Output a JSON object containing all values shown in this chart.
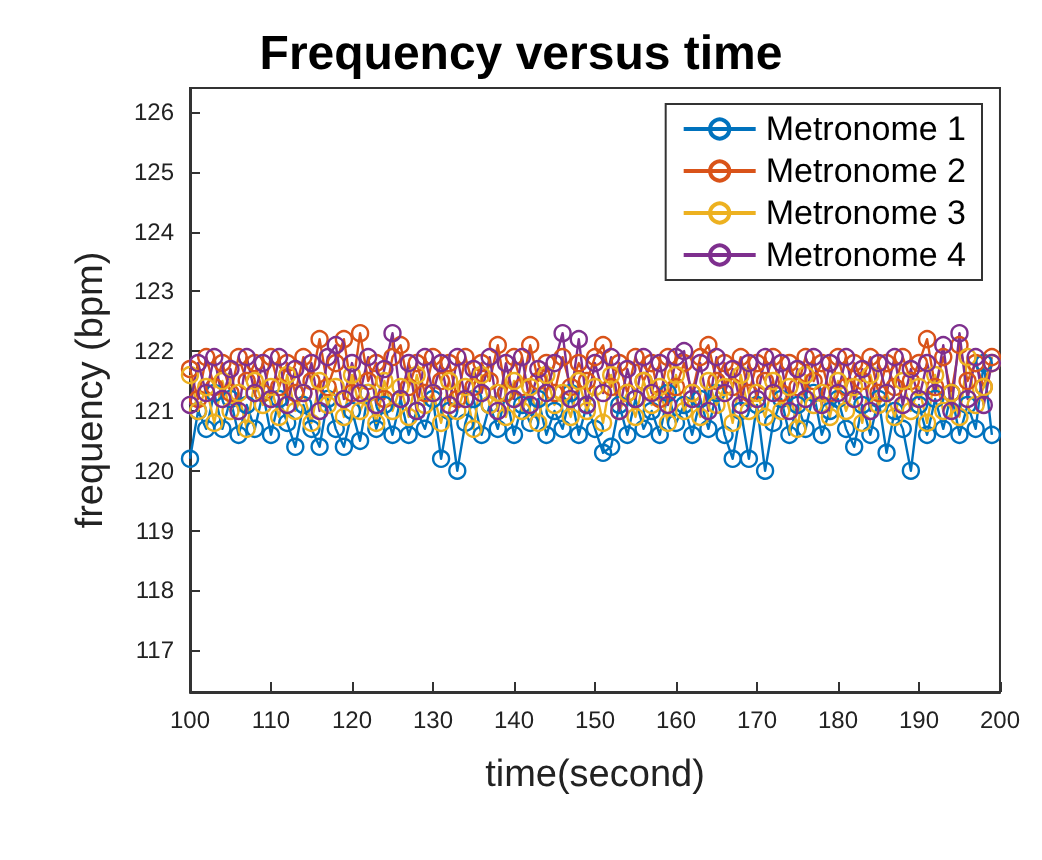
{
  "chart_data": {
    "type": "line",
    "title": "Frequency versus time",
    "xlabel": "time(second)",
    "ylabel": "frequency (bpm)",
    "x": [
      100,
      101,
      102,
      103,
      104,
      105,
      106,
      107,
      108,
      109,
      110,
      111,
      112,
      113,
      114,
      115,
      116,
      117,
      118,
      119,
      120,
      121,
      122,
      123,
      124,
      125,
      126,
      127,
      128,
      129,
      130,
      131,
      132,
      133,
      134,
      135,
      136,
      137,
      138,
      139,
      140,
      141,
      142,
      143,
      144,
      145,
      146,
      147,
      148,
      149,
      150,
      151,
      152,
      153,
      154,
      155,
      156,
      157,
      158,
      159,
      160,
      161,
      162,
      163,
      164,
      165,
      166,
      167,
      168,
      169,
      170,
      171,
      172,
      173,
      174,
      175,
      176,
      177,
      178,
      179,
      180,
      181,
      182,
      183,
      184,
      185,
      186,
      187,
      188,
      189,
      190,
      191,
      192,
      193,
      194,
      195,
      196,
      197,
      198,
      199
    ],
    "series": [
      {
        "name": "Metronome 1",
        "color": "#0072bd",
        "values": [
          120.2,
          121.0,
          120.7,
          121.3,
          120.7,
          121.2,
          120.6,
          121.1,
          120.7,
          121.3,
          120.6,
          121.2,
          120.8,
          120.4,
          121.1,
          120.7,
          120.4,
          121.2,
          120.7,
          120.4,
          121.0,
          120.5,
          121.3,
          120.7,
          121.1,
          120.6,
          121.2,
          120.6,
          121.0,
          120.7,
          121.2,
          120.2,
          121.0,
          120.0,
          120.8,
          121.2,
          120.6,
          121.1,
          120.7,
          121.3,
          120.6,
          121.1,
          120.8,
          121.2,
          120.6,
          121.0,
          120.7,
          121.3,
          120.6,
          121.1,
          120.7,
          120.3,
          120.4,
          121.1,
          120.6,
          121.2,
          120.7,
          121.0,
          120.6,
          121.3,
          120.8,
          121.1,
          120.6,
          121.2,
          120.7,
          121.3,
          120.6,
          120.2,
          121.0,
          120.2,
          121.1,
          120.0,
          120.8,
          121.2,
          120.6,
          121.1,
          120.7,
          121.3,
          120.6,
          121.0,
          121.2,
          120.7,
          120.4,
          121.1,
          120.6,
          121.2,
          120.3,
          121.0,
          120.7,
          120.0,
          121.1,
          120.6,
          121.2,
          120.7,
          121.3,
          120.6,
          121.1,
          120.7,
          121.8,
          120.6
        ]
      },
      {
        "name": "Metronome 2",
        "color": "#d95319",
        "values": [
          121.7,
          121.2,
          121.9,
          121.4,
          121.8,
          121.3,
          121.9,
          121.5,
          121.8,
          121.3,
          121.9,
          121.4,
          121.8,
          121.3,
          121.9,
          121.5,
          122.2,
          121.4,
          121.8,
          122.2,
          121.3,
          122.3,
          121.5,
          121.8,
          121.2,
          121.9,
          122.1,
          121.4,
          121.8,
          121.3,
          121.9,
          121.5,
          121.8,
          121.2,
          121.9,
          121.4,
          121.8,
          121.5,
          122.1,
          121.3,
          121.9,
          121.4,
          122.1,
          121.5,
          121.8,
          121.3,
          121.9,
          121.4,
          121.8,
          121.5,
          121.9,
          122.1,
          121.4,
          121.8,
          121.3,
          121.9,
          121.5,
          121.8,
          121.2,
          121.9,
          121.4,
          121.8,
          121.3,
          121.9,
          122.1,
          121.5,
          121.8,
          121.4,
          121.9,
          121.3,
          121.8,
          121.5,
          121.9,
          121.3,
          121.8,
          121.4,
          121.9,
          121.5,
          121.8,
          121.3,
          121.9,
          121.4,
          121.8,
          121.5,
          121.9,
          121.3,
          121.8,
          121.4,
          121.9,
          121.5,
          121.8,
          122.2,
          121.4,
          121.9,
          121.3,
          122.1,
          121.5,
          121.8,
          121.4,
          121.9
        ]
      },
      {
        "name": "Metronome 3",
        "color": "#edb120",
        "values": [
          121.6,
          121.0,
          121.4,
          120.8,
          121.5,
          121.0,
          121.3,
          120.7,
          121.5,
          121.1,
          121.4,
          120.9,
          121.6,
          121.0,
          121.3,
          120.8,
          121.5,
          121.1,
          121.4,
          120.9,
          121.6,
          121.0,
          121.3,
          120.8,
          121.5,
          121.0,
          121.4,
          120.9,
          121.6,
          121.1,
          121.3,
          120.8,
          121.5,
          121.0,
          121.4,
          120.7,
          121.6,
          121.1,
          121.3,
          120.9,
          121.5,
          121.0,
          121.4,
          120.8,
          121.6,
          121.1,
          121.3,
          120.9,
          121.5,
          121.0,
          121.4,
          120.8,
          121.6,
          121.0,
          121.3,
          120.9,
          121.5,
          121.1,
          121.4,
          120.8,
          121.6,
          121.0,
          121.3,
          120.9,
          121.5,
          121.1,
          121.4,
          120.8,
          121.6,
          121.0,
          121.3,
          120.9,
          121.5,
          121.0,
          121.4,
          120.7,
          121.6,
          121.1,
          121.3,
          120.9,
          121.5,
          121.0,
          121.4,
          120.8,
          121.6,
          121.1,
          121.3,
          120.9,
          121.5,
          121.0,
          121.4,
          120.8,
          121.6,
          121.0,
          121.3,
          120.9,
          121.9,
          121.1,
          121.4,
          121.8
        ]
      },
      {
        "name": "Metronome 4",
        "color": "#7e2f8e",
        "values": [
          121.1,
          121.8,
          121.3,
          121.9,
          121.2,
          121.7,
          121.0,
          121.9,
          121.3,
          121.8,
          121.2,
          121.9,
          121.1,
          121.7,
          121.3,
          121.8,
          121.0,
          121.9,
          122.1,
          121.2,
          121.8,
          121.3,
          121.9,
          121.1,
          121.7,
          122.3,
          121.2,
          121.8,
          121.0,
          121.9,
          121.3,
          121.8,
          121.1,
          121.9,
          121.2,
          121.7,
          121.3,
          121.9,
          121.0,
          121.8,
          121.2,
          121.9,
          121.1,
          121.7,
          121.3,
          121.8,
          122.3,
          121.2,
          122.2,
          121.1,
          121.8,
          121.3,
          121.9,
          121.0,
          121.7,
          121.2,
          121.9,
          121.3,
          121.8,
          121.1,
          121.9,
          122.0,
          121.2,
          121.8,
          121.0,
          121.9,
          121.3,
          121.7,
          121.1,
          121.8,
          121.2,
          121.9,
          121.3,
          121.8,
          121.0,
          121.7,
          121.2,
          121.9,
          121.1,
          121.8,
          121.3,
          121.9,
          121.2,
          121.7,
          121.0,
          121.8,
          121.3,
          121.9,
          121.1,
          121.7,
          121.2,
          121.8,
          121.3,
          122.1,
          121.0,
          122.3,
          121.2,
          121.9,
          121.1,
          121.8
        ]
      }
    ],
    "xlim": [
      100,
      200
    ],
    "xticks": [
      100,
      110,
      120,
      130,
      140,
      150,
      160,
      170,
      180,
      190,
      200
    ],
    "ylim": [
      116.3,
      126.4
    ],
    "yticks": [
      117,
      118,
      119,
      120,
      121,
      122,
      123,
      124,
      125,
      126
    ],
    "legend": "top right",
    "marker": "circle"
  }
}
